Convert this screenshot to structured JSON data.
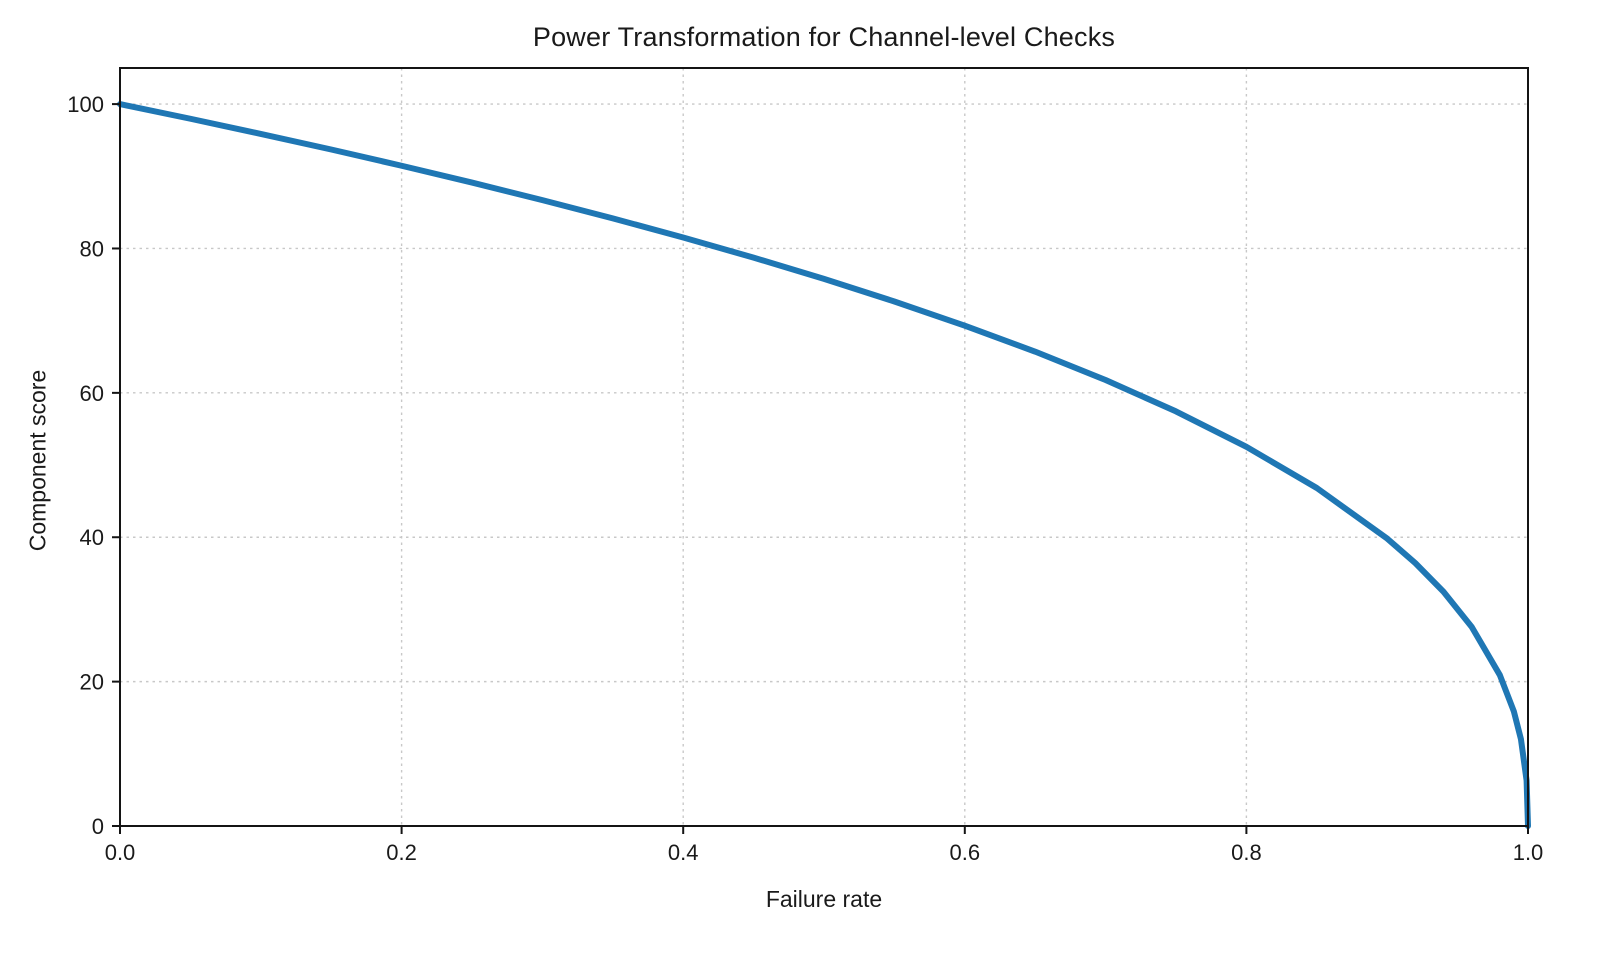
{
  "chart_data": {
    "type": "line",
    "title": "Power Transformation for Channel-level Checks",
    "xlabel": "Failure rate",
    "ylabel": "Component score",
    "xlim": [
      0.0,
      1.0
    ],
    "ylim": [
      0,
      105
    ],
    "xticks": [
      0.0,
      0.2,
      0.4,
      0.6,
      0.8,
      1.0
    ],
    "xtick_labels": [
      "0.0",
      "0.2",
      "0.4",
      "0.6",
      "0.8",
      "1.0"
    ],
    "yticks": [
      0,
      20,
      40,
      60,
      80,
      100
    ],
    "ytick_labels": [
      "0",
      "20",
      "40",
      "60",
      "80",
      "100"
    ],
    "grid": true,
    "legend": "none",
    "line_color": "#1f77b4",
    "line_width": 6,
    "function": "score = 100 * (1 - failure_rate)^0.4",
    "x": [
      0.0,
      0.05,
      0.1,
      0.15,
      0.2,
      0.25,
      0.3,
      0.35,
      0.4,
      0.45,
      0.5,
      0.55,
      0.6,
      0.65,
      0.7,
      0.75,
      0.8,
      0.85,
      0.9,
      0.92,
      0.94,
      0.96,
      0.98,
      0.99,
      0.995,
      0.999,
      1.0
    ],
    "y": [
      100.0,
      97.97,
      95.87,
      93.71,
      91.46,
      89.13,
      86.7,
      84.17,
      81.52,
      78.73,
      75.79,
      72.66,
      69.31,
      65.71,
      61.78,
      57.43,
      52.53,
      46.82,
      39.81,
      36.41,
      32.45,
      27.59,
      20.91,
      15.85,
      12.01,
      6.31,
      0.0
    ]
  },
  "layout_colors": {
    "grid": "#c8c8c8",
    "spine": "#141414",
    "background": "#ffffff"
  }
}
